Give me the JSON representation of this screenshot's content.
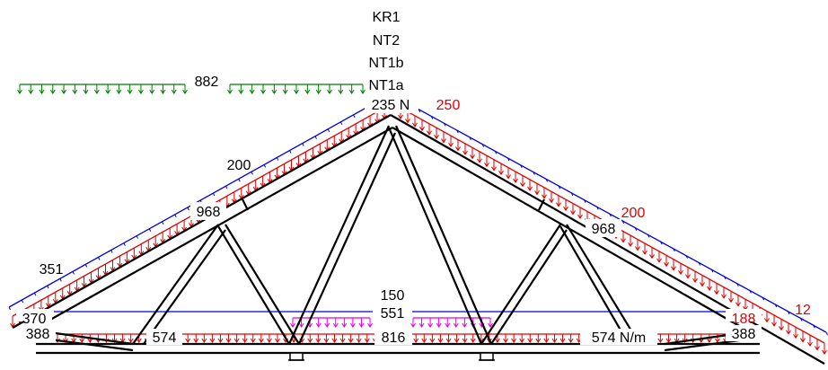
{
  "load_cases": [
    "KR1",
    "NT2",
    "NT1b",
    "NT1a"
  ],
  "apex_load": "235 N",
  "labels": {
    "snow_load": "882",
    "top_left_upper": "200",
    "top_left_joint": "968",
    "top_left_eave": "351",
    "top_right_apex": "250",
    "top_right_joint": "968",
    "top_right_mid": "200",
    "top_right_eave": "12",
    "bottom_upper": "150",
    "bottom_center_upper": "551",
    "bottom_left_eave": "370",
    "bottom_right_eave": "188",
    "bottom_left_end": "388",
    "bottom_left_mid": "574",
    "bottom_center": "816",
    "bottom_right_mid": "574 N/m",
    "bottom_right_end": "388"
  },
  "colors": {
    "member": "#000000",
    "dead_load": "#e00000",
    "wind_load": "#0000e0",
    "snow_load": "#007a00",
    "point_load": "#e000e0"
  }
}
